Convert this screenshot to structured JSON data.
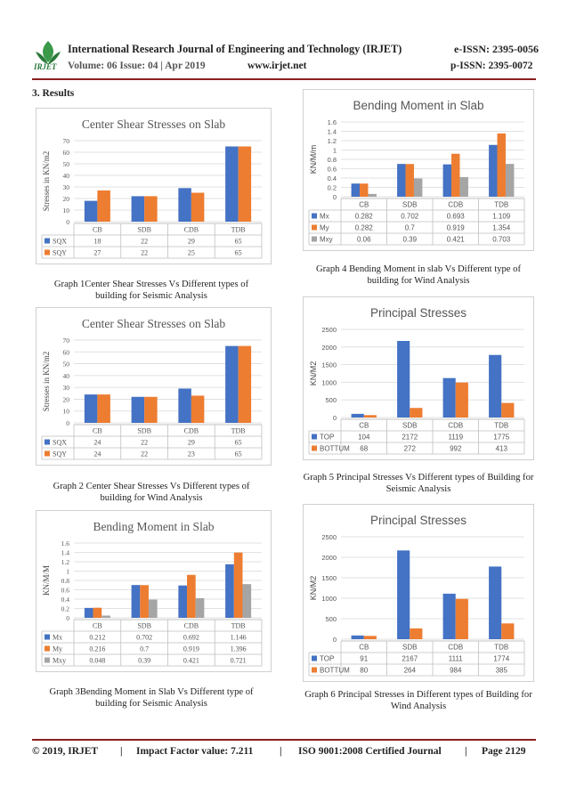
{
  "header": {
    "journal": "International Research Journal of Engineering and Technology (IRJET)",
    "eissn": "e-ISSN: 2395-0056",
    "volume": "Volume: 06 Issue: 04 | Apr 2019",
    "website": "www.irjet.net",
    "pissn": "p-ISSN: 2395-0072",
    "logo_text": "IRJET"
  },
  "section_title": "3. Results",
  "captions": {
    "g1": "Graph 1Center Shear Stresses Vs Different types of building for Seismic Analysis",
    "g2": "Graph 2 Center Shear Stresses Vs Different types of building for Wind Analysis",
    "g3": "Graph 3Bending Moment in Slab Vs Different type of building for Seismic Analysis",
    "g4": "Graph 4 Bending Moment in slab Vs Different type of building for Wind Analysis",
    "g5": "Graph 5 Principal Stresses Vs Different types of Building for Seismic Analysis",
    "g6": "Graph 6 Principal Stresses in Different types of Building for Wind Analysis"
  },
  "footer": {
    "copyright": "© 2019, IRJET",
    "impact": "Impact Factor value: 7.211",
    "iso": "ISO 9001:2008 Certified Journal",
    "page": "Page 2129",
    "sep": "|"
  },
  "chart_data": [
    {
      "id": "g1",
      "type": "bar",
      "title": "Center Shear Stresses on Slab",
      "ylabel": "Stresses in KN/m2",
      "ylim": [
        0,
        70
      ],
      "yticks": [
        0,
        10,
        20,
        30,
        40,
        50,
        60,
        70
      ],
      "categories": [
        "CB",
        "SDB",
        "CDB",
        "TDB"
      ],
      "series": [
        {
          "name": "SQX",
          "color": "#4472c4",
          "values": [
            18,
            22,
            29,
            65
          ]
        },
        {
          "name": "SQY",
          "color": "#ed7d31",
          "values": [
            27,
            22,
            25,
            65
          ]
        }
      ],
      "grid": true,
      "legend": "table"
    },
    {
      "id": "g2",
      "type": "bar",
      "title": "Center Shear Stresses on Slab",
      "ylabel": "Stresses in KN/m2",
      "ylim": [
        0,
        70
      ],
      "yticks": [
        0,
        10,
        20,
        30,
        40,
        50,
        60,
        70
      ],
      "categories": [
        "CB",
        "SDB",
        "CDB",
        "TDB"
      ],
      "series": [
        {
          "name": "SQX",
          "color": "#4472c4",
          "values": [
            24,
            22,
            29,
            65
          ]
        },
        {
          "name": "SQY",
          "color": "#ed7d31",
          "values": [
            24,
            22,
            23,
            65
          ]
        }
      ],
      "grid": true,
      "legend": "table"
    },
    {
      "id": "g3",
      "type": "bar",
      "title": "Bending Moment in Slab",
      "ylabel": "KN/M/M",
      "ylim": [
        0,
        1.6
      ],
      "yticks": [
        "0",
        "0.2",
        "0.4",
        "0.6",
        "0.8",
        "1",
        "1.2",
        "1.4",
        "1.6"
      ],
      "categories": [
        "CB",
        "SDB",
        "CDB",
        "TDB"
      ],
      "series": [
        {
          "name": "Mx",
          "color": "#4472c4",
          "values": [
            0.212,
            0.702,
            0.692,
            1.146
          ]
        },
        {
          "name": "My",
          "color": "#ed7d31",
          "values": [
            0.216,
            0.7,
            0.919,
            1.396
          ]
        },
        {
          "name": "Mxy",
          "color": "#a5a5a5",
          "values": [
            0.048,
            0.39,
            0.421,
            0.721
          ]
        }
      ],
      "grid": true,
      "legend": "table"
    },
    {
      "id": "g4",
      "type": "bar",
      "title": "Bending Moment in Slab",
      "ylabel": "KN/M/m",
      "ylim": [
        0,
        1.6
      ],
      "yticks": [
        "0",
        "0.2",
        "0.4",
        "0.6",
        "0.8",
        "1",
        "1.2",
        "1.4",
        "1.6"
      ],
      "categories": [
        "CB",
        "SDB",
        "CDB",
        "TDB"
      ],
      "series": [
        {
          "name": "Mx",
          "color": "#4472c4",
          "values": [
            0.282,
            0.702,
            0.693,
            1.109
          ]
        },
        {
          "name": "My",
          "color": "#ed7d31",
          "values": [
            0.282,
            0.7,
            0.919,
            1.354
          ]
        },
        {
          "name": "Mxy",
          "color": "#a5a5a5",
          "values": [
            0.06,
            0.39,
            0.421,
            0.703
          ]
        }
      ],
      "grid": true,
      "legend": "table"
    },
    {
      "id": "g5",
      "type": "bar",
      "title": "Principal Stresses",
      "ylabel": "KN/M2",
      "ylim": [
        0,
        2500
      ],
      "yticks": [
        0,
        500,
        1000,
        1500,
        2000,
        2500
      ],
      "categories": [
        "CB",
        "SDB",
        "CDB",
        "TDB"
      ],
      "series": [
        {
          "name": "TOP",
          "color": "#4472c4",
          "values": [
            104,
            2172,
            1119,
            1775
          ]
        },
        {
          "name": "BOTTUM",
          "color": "#ed7d31",
          "values": [
            68,
            272,
            992,
            413
          ]
        }
      ],
      "grid": true,
      "legend": "table"
    },
    {
      "id": "g6",
      "type": "bar",
      "title": "Principal Stresses",
      "ylabel": "KN/M2",
      "ylim": [
        0,
        2500
      ],
      "yticks": [
        0,
        500,
        1000,
        1500,
        2000,
        2500
      ],
      "categories": [
        "CB",
        "SDB",
        "CDB",
        "TDB"
      ],
      "series": [
        {
          "name": "TOP",
          "color": "#4472c4",
          "values": [
            91,
            2167,
            1111,
            1774
          ]
        },
        {
          "name": "BOTTUM",
          "color": "#ed7d31",
          "values": [
            80,
            264,
            984,
            385
          ]
        }
      ],
      "grid": true,
      "legend": "table"
    }
  ]
}
